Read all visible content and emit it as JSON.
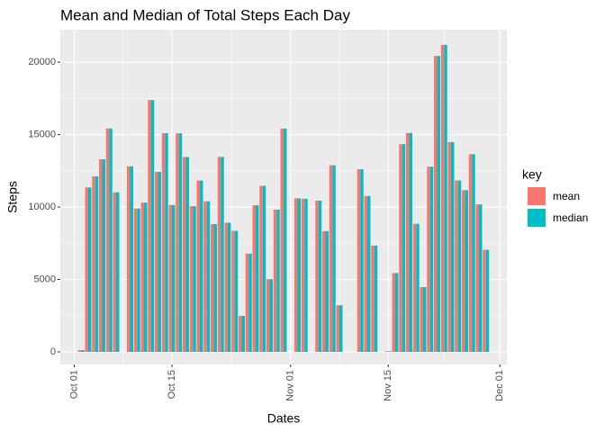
{
  "chart_data": {
    "type": "bar",
    "title": "Mean and Median of Total Steps Each Day",
    "x_label": "Dates",
    "y_label": "Steps",
    "legend_title": "key",
    "x": [
      "Oct 02",
      "Oct 03",
      "Oct 04",
      "Oct 05",
      "Oct 06",
      "Oct 07",
      "Oct 09",
      "Oct 10",
      "Oct 11",
      "Oct 12",
      "Oct 13",
      "Oct 14",
      "Oct 15",
      "Oct 16",
      "Oct 17",
      "Oct 18",
      "Oct 19",
      "Oct 20",
      "Oct 21",
      "Oct 22",
      "Oct 23",
      "Oct 24",
      "Oct 25",
      "Oct 26",
      "Oct 27",
      "Oct 28",
      "Oct 29",
      "Oct 30",
      "Oct 31",
      "Nov 02",
      "Nov 03",
      "Nov 05",
      "Nov 06",
      "Nov 07",
      "Nov 08",
      "Nov 11",
      "Nov 12",
      "Nov 13",
      "Nov 15",
      "Nov 16",
      "Nov 17",
      "Nov 18",
      "Nov 19",
      "Nov 20",
      "Nov 21",
      "Nov 22",
      "Nov 23",
      "Nov 24",
      "Nov 25",
      "Nov 26",
      "Nov 27",
      "Nov 28",
      "Nov 29"
    ],
    "series": [
      {
        "name": "mean",
        "color": "#F8766D",
        "values": [
          126,
          11352,
          12116,
          13294,
          15420,
          11015,
          12811,
          9900,
          10304,
          17382,
          12426,
          15098,
          10139,
          15084,
          13452,
          10056,
          11829,
          10395,
          8821,
          13460,
          8918,
          8355,
          2492,
          6778,
          10119,
          11458,
          5018,
          9819,
          15414,
          10600,
          10571,
          10439,
          8334,
          12883,
          3219,
          12608,
          10765,
          7336,
          41,
          5441,
          14339,
          15110,
          8841,
          4472,
          12787,
          20427,
          21194,
          14478,
          11834,
          11162,
          13646,
          10183,
          7047
        ]
      },
      {
        "name": "median",
        "color": "#00BFC4",
        "values": [
          126,
          11352,
          12116,
          13294,
          15420,
          11015,
          12811,
          9900,
          10304,
          17382,
          12426,
          15098,
          10139,
          15084,
          13452,
          10056,
          11829,
          10395,
          8821,
          13460,
          8918,
          8355,
          2492,
          6778,
          10119,
          11458,
          5018,
          9819,
          15414,
          10600,
          10571,
          10439,
          8334,
          12883,
          3219,
          12608,
          10765,
          7336,
          41,
          5441,
          14339,
          15110,
          8841,
          4472,
          12787,
          20427,
          21194,
          14478,
          11834,
          11162,
          13646,
          10183,
          7047
        ]
      }
    ],
    "xlim": [
      "Sep 29",
      "Dec 02"
    ],
    "xticks": [
      "Oct 01",
      "Oct 15",
      "Nov 01",
      "Nov 15",
      "Dec 01"
    ],
    "ylim": [
      -870,
      22240
    ],
    "yticks": [
      0,
      5000,
      10000,
      15000,
      20000
    ],
    "grid": true
  }
}
